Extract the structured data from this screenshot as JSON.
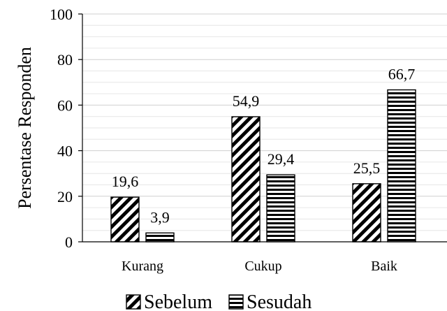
{
  "chart_data": {
    "type": "bar",
    "categories": [
      "Kurang",
      "Cukup",
      "Baik"
    ],
    "series": [
      {
        "name": "Sebelum",
        "values": [
          19.6,
          54.9,
          25.5
        ],
        "labels": [
          "19,6",
          "54,9",
          "25,5"
        ],
        "pattern": "diagonal"
      },
      {
        "name": "Sesudah",
        "values": [
          3.9,
          29.4,
          66.7
        ],
        "labels": [
          "3,9",
          "29,4",
          "66,7"
        ],
        "pattern": "horizontal"
      }
    ],
    "ylabel": "Persentase Responden",
    "xlabel": "",
    "ylim": [
      0,
      100
    ],
    "yticks": [
      0,
      20,
      40,
      60,
      80,
      100
    ],
    "minor_grid_step": 5,
    "grid": true,
    "legend_position": "bottom"
  }
}
